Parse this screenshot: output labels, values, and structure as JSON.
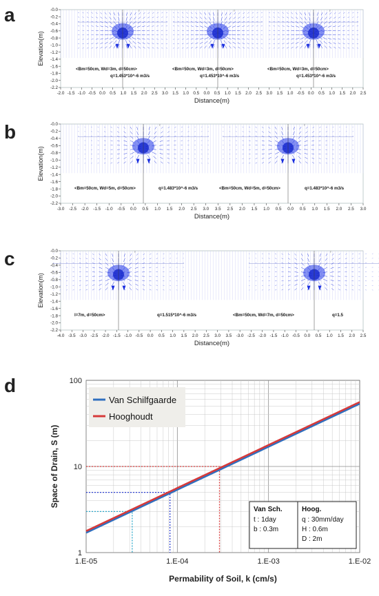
{
  "panels": [
    {
      "letter": "a"
    },
    {
      "letter": "b"
    },
    {
      "letter": "c"
    },
    {
      "letter": "d"
    }
  ],
  "chart_data": [
    {
      "type": "vector-field",
      "panel": "a",
      "ylabel": "Elevation(m)",
      "xlabel": "Distance(m)",
      "xlim": [
        -2.0,
        2.5
      ],
      "ylim": [
        -2.2,
        0.0
      ],
      "x_ticks": [
        "-2.0",
        "-1.5",
        "-1.0",
        "-0.5",
        "0.0",
        "0.5",
        "1.0",
        "1.5",
        "2.0",
        "2.5",
        "3.0",
        "1.5",
        "1.0",
        "0.5",
        "0.0",
        "0.5",
        "1.0",
        "1.5",
        "2.0",
        "2.5",
        "3.0",
        "1.5",
        "1.0",
        "-0.5",
        "0.0",
        "0.5",
        "1.0",
        "1.5",
        "2.0",
        "2.5"
      ],
      "y_ticks": [
        "-0.0",
        "-0.2",
        "-0.4",
        "-0.6",
        "-0.8",
        "-1.0",
        "-1.2",
        "-1.4",
        "-1.6",
        "-1.8",
        "-2.0",
        "-2.2"
      ],
      "drain_centers": [
        0.0,
        4.0,
        8.0
      ],
      "annotations": [
        {
          "params": "<Bm=50cm, Wd=3m, d=50cm>",
          "flow": "q=1.453*10^-6 m3/s"
        },
        {
          "params": "<Bm=50cm, Wd=3m, d=50cm>",
          "flow": "q=1.453*10^-6 m3/s"
        },
        {
          "params": "<Bm=50cm, Wd=3m, d=50cm>",
          "flow": "q=1.453*10^-6 m3/s"
        }
      ]
    },
    {
      "type": "vector-field",
      "panel": "b",
      "ylabel": "Elevation(m)",
      "xlabel": "Distance(m)",
      "y_ticks": [
        "-0.0",
        "-0.2",
        "-0.4",
        "-0.6",
        "-0.8",
        "-1.0",
        "-1.2",
        "-1.4",
        "-1.6",
        "-1.8",
        "-2.0",
        "-2.2"
      ],
      "x_ticks": [
        "-3.0",
        "-2.5",
        "-2.0",
        "-1.5",
        "-1.0",
        "-0.5",
        "0.0",
        "0.5",
        "1.0",
        "1.5",
        "2.0",
        "2.5",
        "3.0",
        "3.5",
        "2.5",
        "2.0",
        "1.5",
        "1.0",
        "0.5",
        "0.0",
        "0.5",
        "1.0",
        "1.5",
        "2.0",
        "2.5",
        "3.0"
      ],
      "annotations": [
        {
          "params": "<Bm=50cm, Wd=5m, d=50cm>",
          "flow": "q=1.483*10^-6 m3/s"
        },
        {
          "params": "<Bm=50cm, Wd=5m, d=50cm>",
          "flow": "q=1.483*10^-6 m3/s"
        }
      ]
    },
    {
      "type": "vector-field",
      "panel": "c",
      "ylabel": "Elevation(m)",
      "xlabel": "Distance(m)",
      "y_ticks": [
        "-0.0",
        "-0.2",
        "-0.4",
        "-0.6",
        "-0.8",
        "-1.0",
        "-1.2",
        "-1.4",
        "-1.6",
        "-1.8",
        "-2.0",
        "-2.2"
      ],
      "x_ticks": [
        "-4.0",
        "-3.5",
        "-3.0",
        "-2.5",
        "-2.0",
        "-1.5",
        "-1.0",
        "-0.5",
        "0.0",
        "0.5",
        "1.0",
        "1.5",
        "2.0",
        "2.5",
        "3.0",
        "3.5",
        "-3.0",
        "-2.5",
        "-2.0",
        "-1.5",
        "-1.0",
        "-0.5",
        "0.0",
        "0.5",
        "1.0",
        "1.5",
        "2.0",
        "2.5"
      ],
      "annotations": [
        {
          "params": "l=7m, d=50cm>",
          "flow": "q=1.515*10^-6 m3/s"
        },
        {
          "params": "<Bm=50cm, Wd=7m, d=50cm>",
          "flow": "q=1.5"
        }
      ]
    },
    {
      "type": "line",
      "panel": "d",
      "xscale": "log",
      "yscale": "log",
      "xlabel": "Permability of Soil,  k (cm/s)",
      "ylabel": "Space of Drain, S (m)",
      "xlim": [
        1e-05,
        0.01
      ],
      "ylim": [
        1,
        100
      ],
      "x_tick_labels": [
        "1.E-05",
        "1.E-04",
        "1.E-03",
        "1.E-02"
      ],
      "y_tick_labels": [
        "1",
        "10",
        "100"
      ],
      "x_tick_values": [
        1e-05,
        0.0001,
        0.001,
        0.01
      ],
      "y_tick_values": [
        1,
        10,
        100
      ],
      "grid": true,
      "legend": "top-left",
      "series": [
        {
          "name": "Van Schilfgaarde",
          "color": "#2f6fbf",
          "x": [
            1e-05,
            0.01
          ],
          "y": [
            1.7,
            53.5
          ]
        },
        {
          "name": "Hooghoudt",
          "color": "#d63a3a",
          "x": [
            1e-05,
            0.01
          ],
          "y": [
            1.78,
            56.0
          ]
        }
      ],
      "reference_lines": [
        {
          "color": "#d63a3a",
          "x": 0.00029,
          "y": 10
        },
        {
          "color": "#2b3fd1",
          "x": 8.3e-05,
          "y": 5
        },
        {
          "color": "#2aa7c9",
          "x": 3.2e-05,
          "y": 3
        }
      ],
      "param_box": {
        "col1_title": "Van Sch.",
        "col1_lines": [
          "t : 1day",
          "b : 0.3m"
        ],
        "col2_title": "Hoog.",
        "col2_lines": [
          "q : 30mm/day",
          "H : 0.6m",
          "D : 2m"
        ]
      }
    }
  ]
}
